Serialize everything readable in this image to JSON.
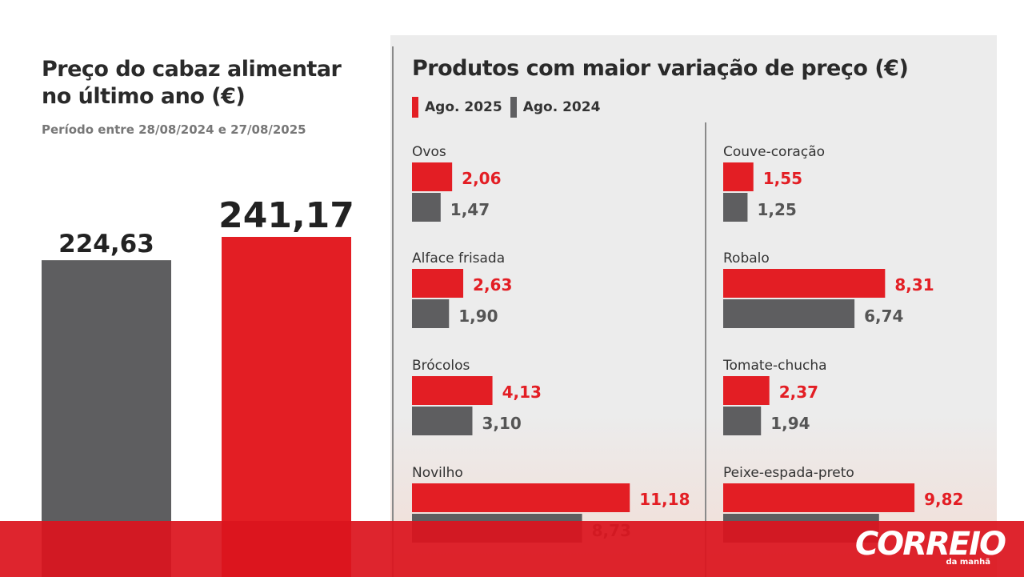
{
  "left": {
    "title": "Preço do cabaz alimentar no último ano (€)",
    "subtitle": "Período entre 28/08/2024 e 27/08/2025"
  },
  "right": {
    "title": "Produtos com maior variação de preço (€)",
    "legend": [
      {
        "label": "Ago. 2025",
        "color": "#e31e24"
      },
      {
        "label": "Ago. 2024",
        "color": "#5e5e60"
      }
    ]
  },
  "colors": {
    "red": "#e31e24",
    "gray": "#5e5e60",
    "banner": "#dc141e"
  },
  "logo": {
    "main": "CORREIO",
    "sub": "da manhã"
  },
  "chart_data": [
    {
      "type": "bar",
      "title": "Preço do cabaz alimentar no último ano (€)",
      "subtitle": "Período entre 28/08/2024 e 27/08/2025",
      "categories": [
        "",
        ""
      ],
      "series": [
        {
          "values": [
            224.63,
            241.17
          ]
        }
      ],
      "labels": [
        "224,63",
        "241,17"
      ],
      "colors": [
        "#5e5e60",
        "#e31e24"
      ]
    },
    {
      "type": "bar",
      "title": "Produtos com maior variação de preço (€)",
      "orientation": "horizontal",
      "series_names": [
        "Ago. 2025",
        "Ago. 2024"
      ],
      "products": [
        {
          "name": "Ovos",
          "v2025": 2.06,
          "l2025": "2,06",
          "v2024": 1.47,
          "l2024": "1,47"
        },
        {
          "name": "Alface frisada",
          "v2025": 2.63,
          "l2025": "2,63",
          "v2024": 1.9,
          "l2024": "1,90"
        },
        {
          "name": "Brócolos",
          "v2025": 4.13,
          "l2025": "4,13",
          "v2024": 3.1,
          "l2024": "3,10"
        },
        {
          "name": "Novilho",
          "v2025": 11.18,
          "l2025": "11,18",
          "v2024": 8.73,
          "l2024": "8,73"
        },
        {
          "name": "Couve-coração",
          "v2025": 1.55,
          "l2025": "1,55",
          "v2024": 1.25,
          "l2024": "1,25"
        },
        {
          "name": "Robalo",
          "v2025": 8.31,
          "l2025": "8,31",
          "v2024": 6.74,
          "l2024": "6,74"
        },
        {
          "name": "Tomate-chucha",
          "v2025": 2.37,
          "l2025": "2,37",
          "v2024": 1.94,
          "l2024": "1,94"
        },
        {
          "name": "Peixe-espada-preto",
          "v2025": 9.82,
          "l2025": "9,82",
          "v2024": 8.0,
          "l2024": ""
        }
      ]
    }
  ]
}
